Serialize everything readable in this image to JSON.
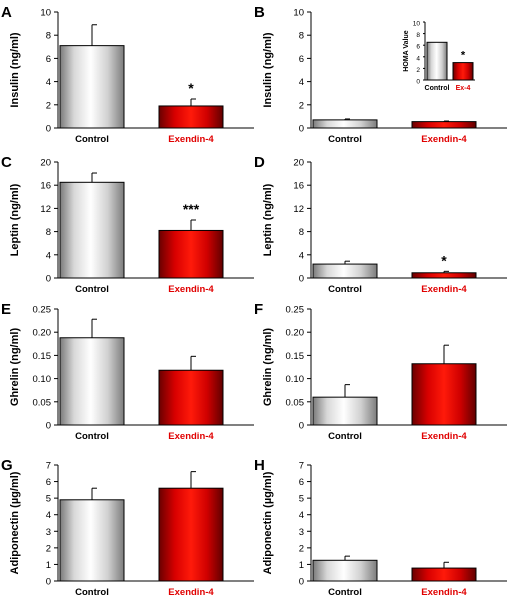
{
  "figure": {
    "category_colors": [
      "#000000",
      "#e00000"
    ],
    "bar_styles": [
      "white-gradient",
      "red-gradient"
    ]
  },
  "chart_data": [
    {
      "panel": "A",
      "type": "bar",
      "categories": [
        "Control",
        "Exendin-4"
      ],
      "values": [
        7.1,
        1.9
      ],
      "errors": [
        1.8,
        0.6
      ],
      "significance": [
        "",
        "*"
      ],
      "ylabel": "Insulin (ng/ml)",
      "ylim": [
        0,
        10
      ],
      "yticks": [
        0,
        2,
        4,
        6,
        8,
        10
      ],
      "ytick_labels": [
        "0",
        "2",
        "4",
        "6",
        "8",
        "10"
      ]
    },
    {
      "panel": "B",
      "type": "bar",
      "categories": [
        "Control",
        "Exendin-4"
      ],
      "values": [
        0.7,
        0.55
      ],
      "errors": [
        0.08,
        0.05
      ],
      "significance": [
        "",
        ""
      ],
      "ylabel": "Insulin (ng/ml)",
      "ylim": [
        0,
        10
      ],
      "yticks": [
        0,
        2,
        4,
        6,
        8,
        10
      ],
      "ytick_labels": [
        "0",
        "2",
        "4",
        "6",
        "8",
        "10"
      ],
      "inset": {
        "type": "bar",
        "categories": [
          "Control",
          "Ex-4"
        ],
        "values": [
          6.5,
          3.0
        ],
        "errors": [
          0,
          0
        ],
        "significance": [
          "",
          "*"
        ],
        "ylabel": "HOMA Value",
        "ylim": [
          0,
          10
        ],
        "yticks": [
          0,
          2,
          4,
          6,
          8,
          10
        ],
        "ytick_labels": [
          "0",
          "2",
          "4",
          "6",
          "8",
          "10"
        ]
      }
    },
    {
      "panel": "C",
      "type": "bar",
      "categories": [
        "Control",
        "Exendin-4"
      ],
      "values": [
        16.5,
        8.2
      ],
      "errors": [
        1.6,
        1.8
      ],
      "significance": [
        "",
        "***"
      ],
      "ylabel": "Leptin (ng/ml)",
      "ylim": [
        0,
        20
      ],
      "yticks": [
        0,
        4,
        8,
        12,
        16,
        20
      ],
      "ytick_labels": [
        "0",
        "4",
        "8",
        "12",
        "16",
        "20"
      ]
    },
    {
      "panel": "D",
      "type": "bar",
      "categories": [
        "Control",
        "Exendin-4"
      ],
      "values": [
        2.4,
        0.9
      ],
      "errors": [
        0.5,
        0.25
      ],
      "significance": [
        "",
        "*"
      ],
      "ylabel": "Leptin (ng/ml)",
      "ylim": [
        0,
        20
      ],
      "yticks": [
        0,
        4,
        8,
        12,
        16,
        20
      ],
      "ytick_labels": [
        "0",
        "4",
        "8",
        "12",
        "16",
        "20"
      ]
    },
    {
      "panel": "E",
      "type": "bar",
      "categories": [
        "Control",
        "Exendin-4"
      ],
      "values": [
        0.188,
        0.118
      ],
      "errors": [
        0.04,
        0.03
      ],
      "significance": [
        "",
        ""
      ],
      "ylabel": "Ghrelin (ng/ml)",
      "ylim": [
        0,
        0.25
      ],
      "yticks": [
        0,
        0.05,
        0.1,
        0.15,
        0.2,
        0.25
      ],
      "ytick_labels": [
        "0",
        "0.05",
        "0.10",
        "0.15",
        "0.20",
        "0.25"
      ]
    },
    {
      "panel": "F",
      "type": "bar",
      "categories": [
        "Control",
        "Exendin-4"
      ],
      "values": [
        0.06,
        0.132
      ],
      "errors": [
        0.027,
        0.04
      ],
      "significance": [
        "",
        ""
      ],
      "ylabel": "Ghrelin (ng/ml)",
      "ylim": [
        0,
        0.25
      ],
      "yticks": [
        0,
        0.05,
        0.1,
        0.15,
        0.2,
        0.25
      ],
      "ytick_labels": [
        "0",
        "0.05",
        "0.10",
        "0.15",
        "0.20",
        "0.25"
      ]
    },
    {
      "panel": "G",
      "type": "bar",
      "categories": [
        "Control",
        "Exendin-4"
      ],
      "values": [
        4.9,
        5.6
      ],
      "errors": [
        0.7,
        1.0
      ],
      "significance": [
        "",
        ""
      ],
      "ylabel": "Adiponectin (µg/ml)",
      "ylim": [
        0,
        7
      ],
      "yticks": [
        0,
        1,
        2,
        3,
        4,
        5,
        6,
        7
      ],
      "ytick_labels": [
        "0",
        "1",
        "2",
        "3",
        "4",
        "5",
        "6",
        "7"
      ]
    },
    {
      "panel": "H",
      "type": "bar",
      "categories": [
        "Control",
        "Exendin-4"
      ],
      "values": [
        1.25,
        0.78
      ],
      "errors": [
        0.25,
        0.35
      ],
      "significance": [
        "",
        ""
      ],
      "ylabel": "Adiponectin (µg/ml)",
      "ylim": [
        0,
        7
      ],
      "yticks": [
        0,
        1,
        2,
        3,
        4,
        5,
        6,
        7
      ],
      "ytick_labels": [
        "0",
        "1",
        "2",
        "3",
        "4",
        "5",
        "6",
        "7"
      ]
    }
  ]
}
